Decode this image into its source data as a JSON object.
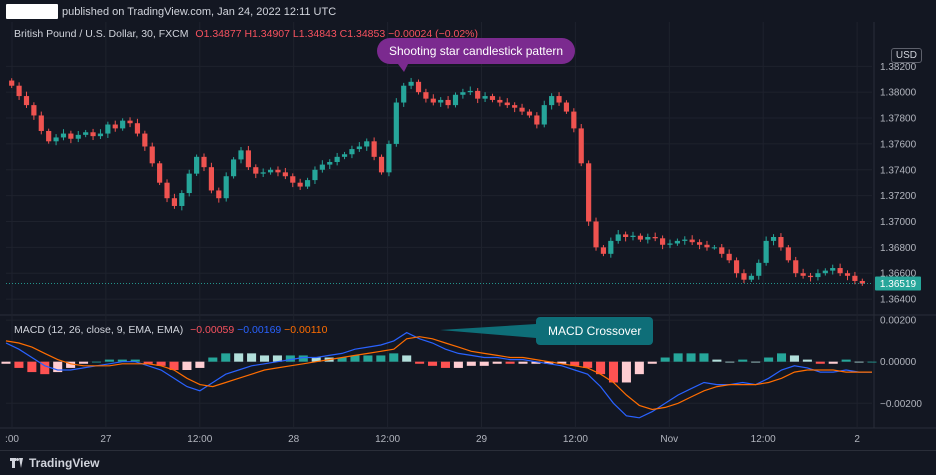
{
  "header": {
    "published_text": "published on TradingView.com, Jan 24, 2022 12:11 UTC"
  },
  "legend": {
    "symbol": "British Pound / U.S. Dollar, 30, FXCM",
    "open": "O1.34877",
    "high": "H1.34907",
    "low": "L1.34843",
    "close": "C1.34853",
    "change": "−0.00024 (−0.02%)"
  },
  "currency_label": "USD",
  "price_last": "1.36519",
  "annotations": {
    "shooting_star": "Shooting star candlestick pattern",
    "macd_crossover": "MACD Crossover"
  },
  "macd_legend": {
    "name": "MACD (12, 26, close, 9, EMA, EMA)",
    "hist": "−0.00059",
    "macd": "−0.00169",
    "signal": "−0.00110"
  },
  "footer": {
    "brand": "TradingView"
  },
  "colors": {
    "up": "#26a69a",
    "down": "#ef5350",
    "macd_line": "#2962ff",
    "signal_line": "#ff6d00",
    "shooting_star_callout": "#7b2a8f",
    "macd_callout": "#0e6e78"
  },
  "chart_data": [
    {
      "type": "candlestick",
      "title": "British Pound / U.S. Dollar, 30, FXCM",
      "y_ticks": [
        "1.38200",
        "1.38000",
        "1.37800",
        "1.37600",
        "1.37400",
        "1.37200",
        "1.37000",
        "1.36800",
        "1.36600",
        "1.36400"
      ],
      "ylim": [
        1.363,
        1.3845
      ],
      "x_ticks": [
        ":00",
        "27",
        "12:00",
        "28",
        "12:00",
        "29",
        "12:00",
        "Nov",
        "12:00",
        "2"
      ],
      "close_series": [
        1.3805,
        1.3797,
        1.379,
        1.3782,
        1.377,
        1.3762,
        1.3765,
        1.3768,
        1.3764,
        1.3767,
        1.3769,
        1.3766,
        1.3768,
        1.3775,
        1.3772,
        1.3778,
        1.3776,
        1.3768,
        1.3758,
        1.3745,
        1.373,
        1.3718,
        1.3712,
        1.3722,
        1.3737,
        1.375,
        1.3742,
        1.3724,
        1.3718,
        1.3735,
        1.3748,
        1.3755,
        1.3742,
        1.3737,
        1.3738,
        1.374,
        1.3738,
        1.3735,
        1.373,
        1.3727,
        1.3732,
        1.374,
        1.3744,
        1.3746,
        1.375,
        1.3752,
        1.3756,
        1.3758,
        1.3762,
        1.375,
        1.3738,
        1.376,
        1.3792,
        1.3805,
        1.3808,
        1.38,
        1.3795,
        1.3792,
        1.3794,
        1.379,
        1.3798,
        1.38,
        1.3801,
        1.3795,
        1.3797,
        1.3794,
        1.3792,
        1.379,
        1.3788,
        1.3785,
        1.3782,
        1.3775,
        1.379,
        1.3797,
        1.3792,
        1.3785,
        1.3772,
        1.3745,
        1.37,
        1.368,
        1.3675,
        1.3685,
        1.369,
        1.3688,
        1.3689,
        1.3686,
        1.3688,
        1.3687,
        1.3682,
        1.3683,
        1.3685,
        1.3686,
        1.3684,
        1.3682,
        1.368,
        1.368,
        1.3675,
        1.367,
        1.366,
        1.3655,
        1.3658,
        1.3668,
        1.3685,
        1.3688,
        1.368,
        1.367,
        1.366,
        1.3658,
        1.3657,
        1.366,
        1.3662,
        1.3664,
        1.366,
        1.3658,
        1.3654,
        1.3652
      ]
    },
    {
      "type": "macd",
      "title": "MACD (12, 26, close, 9, EMA, EMA)",
      "y_ticks": [
        "0.00200",
        "0.00000",
        "−0.00200"
      ],
      "ylim": [
        -0.0029,
        0.0021
      ],
      "series": [
        {
          "name": "MACD",
          "values": [
            0.0009,
            0.0006,
            0.0002,
            -0.0002,
            -0.0004,
            -0.0004,
            -0.0003,
            -0.0002,
            -0.0001,
            0.0,
            0.0,
            -0.0002,
            -0.0004,
            -0.0008,
            -0.0012,
            -0.0014,
            -0.001,
            -0.0006,
            -0.0004,
            -0.0002,
            -0.0001,
            0.0,
            0.0001,
            0.0002,
            0.0002,
            0.0003,
            0.0004,
            0.0006,
            0.0007,
            0.0008,
            0.001,
            0.0014,
            0.0011,
            0.0009,
            0.0006,
            0.0004,
            0.0003,
            0.0002,
            0.0002,
            0.0001,
            0.0001,
            0.0,
            -0.0001,
            -0.0002,
            -0.0004,
            -0.0006,
            -0.0012,
            -0.002,
            -0.0026,
            -0.0027,
            -0.0024,
            -0.002,
            -0.0016,
            -0.0013,
            -0.001,
            -0.0011,
            -0.0011,
            -0.001,
            -0.0011,
            -0.0008,
            -0.0004,
            -0.0002,
            -0.0003,
            -0.0005,
            -0.0005,
            -0.0004,
            -0.0005,
            -0.0005
          ]
        },
        {
          "name": "Signal",
          "values": [
            0.001,
            0.0009,
            0.0007,
            0.0004,
            0.0001,
            -0.0001,
            -0.0002,
            -0.0002,
            -0.0002,
            -0.0001,
            -0.0001,
            -0.0001,
            -0.0002,
            -0.0004,
            -0.0008,
            -0.0011,
            -0.0012,
            -0.001,
            -0.0008,
            -0.0006,
            -0.0004,
            -0.0003,
            -0.0002,
            -0.0001,
            0.0,
            0.0001,
            0.0002,
            0.0003,
            0.0004,
            0.0005,
            0.0006,
            0.0011,
            0.0012,
            0.0011,
            0.0009,
            0.0007,
            0.0005,
            0.0004,
            0.0003,
            0.0002,
            0.0002,
            0.0001,
            0.0,
            -0.0001,
            -0.0002,
            -0.0003,
            -0.0006,
            -0.001,
            -0.0016,
            -0.0021,
            -0.0023,
            -0.0022,
            -0.002,
            -0.0017,
            -0.0014,
            -0.0012,
            -0.0011,
            -0.0011,
            -0.0011,
            -0.001,
            -0.0008,
            -0.0005,
            -0.0004,
            -0.0004,
            -0.0004,
            -0.0005,
            -0.0005,
            -0.0005
          ]
        }
      ]
    }
  ]
}
